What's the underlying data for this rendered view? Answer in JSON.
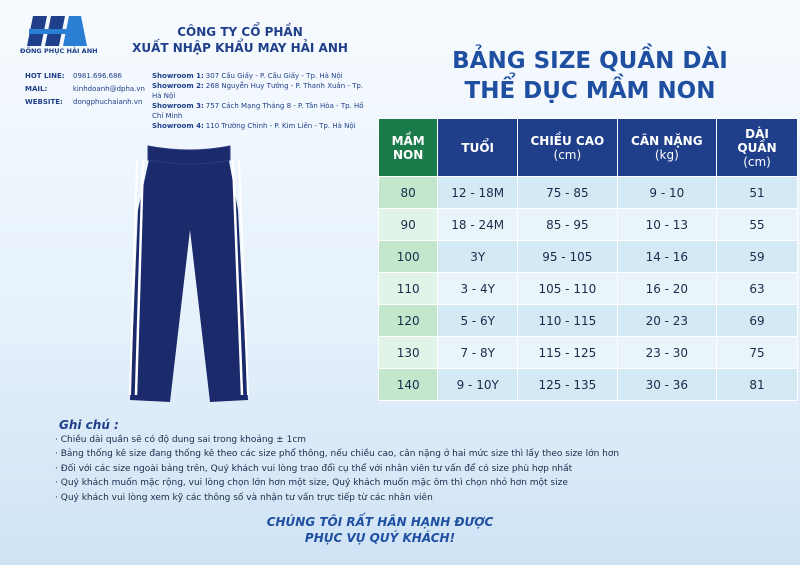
{
  "header": {
    "brand": "ĐỒNG PHỤC HẢI ANH",
    "company": [
      "CÔNG TY CỔ PHẦN",
      "XUẤT NHẬP KHẨU MAY HẢI ANH"
    ],
    "contacts": [
      {
        "label": "HOT LINE:",
        "value": "0981.696.686"
      },
      {
        "label": "MAIL:",
        "value": "kinhdoanh@dpha.vn"
      },
      {
        "label": "WEBSITE:",
        "value": "dongphuchaianh.vn"
      }
    ],
    "showrooms": [
      {
        "label": "Showroom 1:",
        "address": "307 Cầu Giấy - P. Cầu Giấy - Tp. Hà Nội"
      },
      {
        "label": "Showroom 2:",
        "address": "268 Nguyễn Huy Tưởng - P. Thanh Xuân - Tp. Hà Nội"
      },
      {
        "label": "Showroom 3:",
        "address": "757 Cách Mạng Tháng 8 - P. Tân Hòa - Tp. Hồ Chí Minh"
      },
      {
        "label": "Showroom 4:",
        "address": "110 Trường Chinh - P. Kim Liên - Tp. Hà Nội"
      }
    ]
  },
  "title": [
    "BẢNG SIZE QUẦN DÀI",
    "THỂ DỤC MẦM NON"
  ],
  "table": {
    "headers": [
      [
        "MẦM",
        "NON"
      ],
      [
        "TUỔI"
      ],
      [
        "CHIỀU CAO",
        "(cm)"
      ],
      [
        "CÂN NẶNG",
        "(kg)"
      ],
      [
        "DÀI",
        "QUẦN",
        "(cm)"
      ]
    ],
    "rows": [
      [
        "80",
        "12 - 18M",
        "75 - 85",
        "9 - 10",
        "51"
      ],
      [
        "90",
        "18 - 24M",
        "85 - 95",
        "10 - 13",
        "55"
      ],
      [
        "100",
        "3Y",
        "95 - 105",
        "14 - 16",
        "59"
      ],
      [
        "110",
        "3 - 4Y",
        "105 - 110",
        "16 - 20",
        "63"
      ],
      [
        "120",
        "5 - 6Y",
        "110 - 115",
        "20 - 23",
        "69"
      ],
      [
        "130",
        "7 - 8Y",
        "115 - 125",
        "23 - 30",
        "75"
      ],
      [
        "140",
        "9 - 10Y",
        "125 - 135",
        "30 - 36",
        "81"
      ]
    ]
  },
  "notes": {
    "title": "Ghi chú :",
    "items": [
      "Chiều dài quần sẽ có độ dung sai trong khoảng ± 1cm",
      "Bảng thống kê size đang thống kê theo các size phổ thông, nếu chiều cao, cân nặng ở hai mức size thì lấy theo size lớn hơn",
      "Đối với các size ngoài bảng trên, Quý khách vui lòng trao đổi cụ thể với nhân viên tư vấn để có size phù hợp nhất",
      "Quý khách muốn mặc rộng, vui lòng chọn lớn hơn một size, Quý khách muốn mặc ôm thì chọn nhỏ hơn một size",
      "Quý khách vui lòng xem kỹ các thông số và nhận tư vấn trực tiếp từ các nhân viên"
    ]
  },
  "footer": [
    "CHÚNG TÔI RẤT HÂN HẠNH ĐƯỢC",
    "PHỤC VỤ QUÝ KHÁCH!"
  ]
}
